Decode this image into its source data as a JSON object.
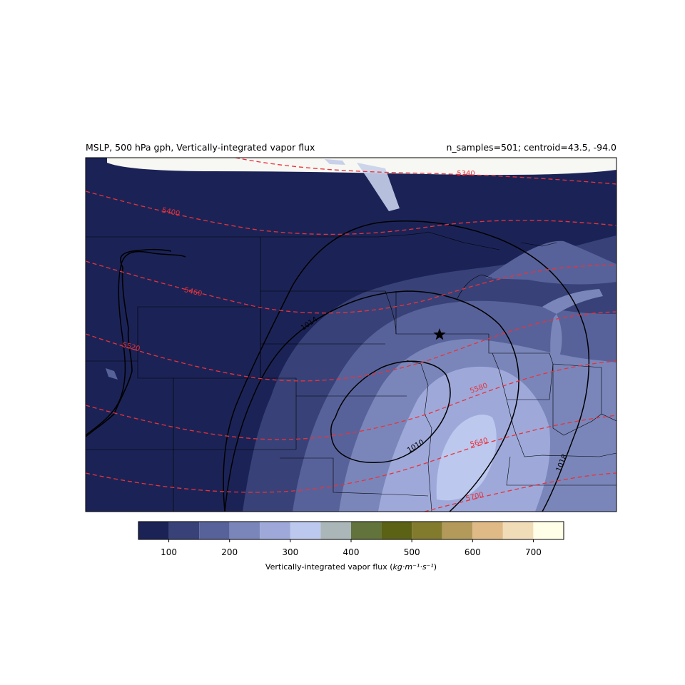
{
  "header": {
    "left_title": "MSLP, 500 hPa gph, Vertically-integrated vapor flux",
    "right_title": "n_samples=501; centroid=43.5, -94.0"
  },
  "map": {
    "marker": "star-icon",
    "mslp_contour_labels": [
      "1010",
      "1014",
      "1018"
    ],
    "gph_contour_labels": [
      "5340",
      "5400",
      "5460",
      "5520",
      "5580",
      "5640",
      "5700"
    ],
    "colors": {
      "mslp_contour": "#000000",
      "gph_contour": "#e8323c"
    }
  },
  "colorbar": {
    "tick_labels": [
      "100",
      "200",
      "300",
      "400",
      "500",
      "600",
      "700"
    ],
    "levels": [
      50,
      100,
      150,
      200,
      250,
      300,
      350,
      400,
      450,
      500,
      550,
      600,
      650,
      700,
      750
    ],
    "colors": [
      "#1b2356",
      "#384278",
      "#58629a",
      "#7a86ba",
      "#9ea9da",
      "#bdc8ee",
      "#aab6b8",
      "#62733c",
      "#5b6216",
      "#827b2e",
      "#b39a5a",
      "#e0ba86",
      "#f1dcb8",
      "#fffee6"
    ],
    "label_text": "Vertically-integrated vapor flux (",
    "label_units": "kg·m⁻¹·s⁻¹",
    "label_close": ")"
  }
}
